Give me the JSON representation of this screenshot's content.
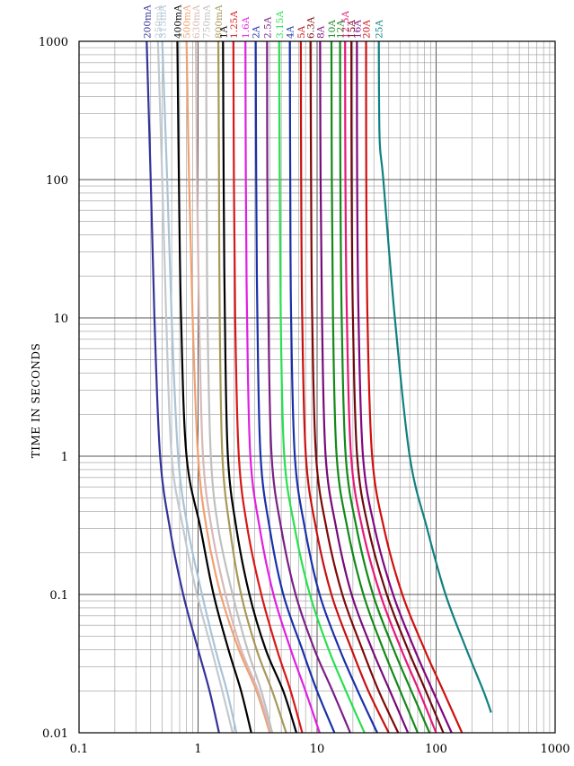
{
  "chart_data": {
    "type": "line",
    "title": "",
    "xlabel": "",
    "ylabel": "TIME IN SECONDS",
    "xscale": "log",
    "yscale": "log",
    "xlim": [
      0.1,
      1000
    ],
    "ylim": [
      0.01,
      1000
    ],
    "x_ticks": [
      "0.1",
      "1",
      "10",
      "100",
      "1000"
    ],
    "y_ticks": [
      "0.01",
      "0.1",
      "1",
      "10",
      "100",
      "1000"
    ],
    "grid": true,
    "legend": "series labels at top of each curve",
    "series": [
      {
        "name": "200mA",
        "color": "#33339a",
        "points": [
          [
            0.37,
            1000
          ],
          [
            0.4,
            100
          ],
          [
            0.43,
            10
          ],
          [
            0.48,
            1
          ],
          [
            0.58,
            0.3
          ],
          [
            0.75,
            0.1
          ],
          [
            1.0,
            0.04
          ],
          [
            1.25,
            0.02
          ],
          [
            1.5,
            0.01
          ]
        ]
      },
      {
        "name": "250mA",
        "color": "#c2c9d0",
        "points": [
          [
            0.46,
            1000
          ],
          [
            0.5,
            100
          ],
          [
            0.54,
            10
          ],
          [
            0.6,
            1
          ],
          [
            0.75,
            0.3
          ],
          [
            0.98,
            0.1
          ],
          [
            1.3,
            0.04
          ],
          [
            1.6,
            0.02
          ],
          [
            1.95,
            0.01
          ]
        ]
      },
      {
        "name": "315mA",
        "color": "#a9c4d6",
        "points": [
          [
            0.5,
            1000
          ],
          [
            0.55,
            100
          ],
          [
            0.6,
            10
          ],
          [
            0.68,
            1
          ],
          [
            0.82,
            0.3
          ],
          [
            1.08,
            0.1
          ],
          [
            1.4,
            0.04
          ],
          [
            1.75,
            0.02
          ],
          [
            2.1,
            0.01
          ]
        ]
      },
      {
        "name": "400mA",
        "color": "#000000",
        "points": [
          [
            0.67,
            1000
          ],
          [
            0.69,
            100
          ],
          [
            0.72,
            10
          ],
          [
            0.8,
            1
          ],
          [
            1.05,
            0.3
          ],
          [
            1.35,
            0.1
          ],
          [
            1.8,
            0.04
          ],
          [
            2.3,
            0.02
          ],
          [
            2.8,
            0.01
          ]
        ]
      },
      {
        "name": "500mA",
        "color": "#f0a070",
        "points": [
          [
            0.8,
            1000
          ],
          [
            0.84,
            100
          ],
          [
            0.9,
            10
          ],
          [
            1.0,
            1
          ],
          [
            1.18,
            0.3
          ],
          [
            1.55,
            0.1
          ],
          [
            2.2,
            0.04
          ],
          [
            3.1,
            0.02
          ],
          [
            4.0,
            0.01
          ]
        ]
      },
      {
        "name": "630mA",
        "color": "#d8b8b8",
        "points": [
          [
            0.96,
            1000
          ],
          [
            0.98,
            100
          ],
          [
            1.02,
            10
          ],
          [
            1.1,
            1
          ],
          [
            1.3,
            0.3
          ],
          [
            1.7,
            0.1
          ],
          [
            2.3,
            0.04
          ],
          [
            3.2,
            0.02
          ],
          [
            4.1,
            0.01
          ]
        ]
      },
      {
        "name": "750mA",
        "color": "#c0c0c0",
        "points": [
          [
            1.17,
            1000
          ],
          [
            1.18,
            100
          ],
          [
            1.2,
            10
          ],
          [
            1.28,
            1
          ],
          [
            1.48,
            0.3
          ],
          [
            1.95,
            0.1
          ],
          [
            2.6,
            0.04
          ],
          [
            3.4,
            0.02
          ],
          [
            4.2,
            0.01
          ]
        ]
      },
      {
        "name": "800mA",
        "color": "#a89858",
        "points": [
          [
            1.48,
            1000
          ],
          [
            1.5,
            100
          ],
          [
            1.52,
            10
          ],
          [
            1.6,
            1
          ],
          [
            1.85,
            0.3
          ],
          [
            2.3,
            0.1
          ],
          [
            3.1,
            0.04
          ],
          [
            4.2,
            0.02
          ],
          [
            5.5,
            0.01
          ]
        ]
      },
      {
        "name": "1A",
        "color": "#000000",
        "points": [
          [
            1.62,
            1000
          ],
          [
            1.64,
            100
          ],
          [
            1.68,
            10
          ],
          [
            1.78,
            1
          ],
          [
            2.1,
            0.3
          ],
          [
            2.7,
            0.1
          ],
          [
            3.7,
            0.04
          ],
          [
            5.2,
            0.02
          ],
          [
            6.7,
            0.01
          ]
        ]
      },
      {
        "name": "1.25A",
        "color": "#d81818",
        "points": [
          [
            1.98,
            1000
          ],
          [
            2.0,
            100
          ],
          [
            2.05,
            10
          ],
          [
            2.2,
            1
          ],
          [
            2.6,
            0.3
          ],
          [
            3.4,
            0.1
          ],
          [
            4.6,
            0.04
          ],
          [
            6.0,
            0.02
          ],
          [
            7.5,
            0.01
          ]
        ]
      },
      {
        "name": "1.6A",
        "color": "#e020e0",
        "points": [
          [
            2.5,
            1000
          ],
          [
            2.52,
            100
          ],
          [
            2.58,
            10
          ],
          [
            2.75,
            1
          ],
          [
            3.3,
            0.3
          ],
          [
            4.3,
            0.1
          ],
          [
            6.0,
            0.04
          ],
          [
            8.0,
            0.02
          ],
          [
            10.5,
            0.01
          ]
        ]
      },
      {
        "name": "2A",
        "color": "#1a30a8",
        "points": [
          [
            3.05,
            1000
          ],
          [
            3.08,
            100
          ],
          [
            3.15,
            10
          ],
          [
            3.35,
            1
          ],
          [
            4.0,
            0.3
          ],
          [
            5.2,
            0.1
          ],
          [
            7.5,
            0.04
          ],
          [
            10.0,
            0.02
          ],
          [
            14.0,
            0.01
          ]
        ]
      },
      {
        "name": "2.5A",
        "color": "#7a1f86",
        "points": [
          [
            3.8,
            1000
          ],
          [
            3.82,
            100
          ],
          [
            3.9,
            10
          ],
          [
            4.15,
            1
          ],
          [
            5.0,
            0.3
          ],
          [
            6.6,
            0.1
          ],
          [
            9.5,
            0.04
          ],
          [
            13.5,
            0.02
          ],
          [
            19.0,
            0.01
          ]
        ]
      },
      {
        "name": "3.15A",
        "color": "#28e050",
        "points": [
          [
            4.8,
            1000
          ],
          [
            4.85,
            100
          ],
          [
            4.95,
            10
          ],
          [
            5.3,
            1
          ],
          [
            6.5,
            0.3
          ],
          [
            8.7,
            0.1
          ],
          [
            12.5,
            0.04
          ],
          [
            17.5,
            0.02
          ],
          [
            25.0,
            0.01
          ]
        ]
      },
      {
        "name": "4A",
        "color": "#1a30a8",
        "points": [
          [
            5.9,
            1000
          ],
          [
            5.95,
            100
          ],
          [
            6.05,
            10
          ],
          [
            6.5,
            1
          ],
          [
            7.9,
            0.3
          ],
          [
            10.5,
            0.1
          ],
          [
            15.5,
            0.04
          ],
          [
            22.0,
            0.02
          ],
          [
            32.0,
            0.01
          ]
        ]
      },
      {
        "name": "5A",
        "color": "#c81010",
        "points": [
          [
            7.3,
            1000
          ],
          [
            7.35,
            100
          ],
          [
            7.5,
            10
          ],
          [
            8.05,
            1
          ],
          [
            9.8,
            0.3
          ],
          [
            13.2,
            0.1
          ],
          [
            19.5,
            0.04
          ],
          [
            27.0,
            0.02
          ],
          [
            40.0,
            0.01
          ]
        ]
      },
      {
        "name": "6.3A",
        "color": "#800808",
        "points": [
          [
            8.8,
            1000
          ],
          [
            8.9,
            100
          ],
          [
            9.1,
            10
          ],
          [
            9.8,
            1
          ],
          [
            12.0,
            0.3
          ],
          [
            16.3,
            0.1
          ],
          [
            24.0,
            0.04
          ],
          [
            33.0,
            0.02
          ],
          [
            48.0,
            0.01
          ]
        ]
      },
      {
        "name": "8A",
        "color": "#780a7a",
        "points": [
          [
            10.6,
            1000
          ],
          [
            10.7,
            100
          ],
          [
            11.0,
            10
          ],
          [
            11.8,
            1
          ],
          [
            14.5,
            0.3
          ],
          [
            19.5,
            0.1
          ],
          [
            29.0,
            0.04
          ],
          [
            41.0,
            0.02
          ],
          [
            58.0,
            0.01
          ]
        ]
      },
      {
        "name": "10A",
        "color": "#128a18",
        "points": [
          [
            13.2,
            1000
          ],
          [
            13.3,
            100
          ],
          [
            13.6,
            10
          ],
          [
            14.6,
            1
          ],
          [
            18.0,
            0.3
          ],
          [
            24.5,
            0.1
          ],
          [
            36.0,
            0.04
          ],
          [
            50.0,
            0.02
          ],
          [
            70.0,
            0.01
          ]
        ]
      },
      {
        "name": "12A",
        "color": "#128a18",
        "points": [
          [
            15.6,
            1000
          ],
          [
            15.7,
            100
          ],
          [
            16.1,
            10
          ],
          [
            17.4,
            1
          ],
          [
            21.5,
            0.3
          ],
          [
            29.5,
            0.1
          ],
          [
            44.0,
            0.04
          ],
          [
            62.0,
            0.02
          ],
          [
            88.0,
            0.01
          ]
        ]
      },
      {
        "name": "12.5A",
        "color": "#e81878",
        "points": [
          [
            17.2,
            1000
          ],
          [
            17.3,
            100
          ],
          [
            17.8,
            10
          ],
          [
            19.3,
            1
          ],
          [
            24.0,
            0.3
          ],
          [
            34.0,
            0.1
          ],
          [
            51.0,
            0.04
          ],
          [
            72.0,
            0.02
          ],
          [
            100.0,
            0.01
          ]
        ]
      },
      {
        "name": "15A",
        "color": "#700810",
        "points": [
          [
            19.4,
            1000
          ],
          [
            19.5,
            100
          ],
          [
            20.0,
            10
          ],
          [
            21.7,
            1
          ],
          [
            27.0,
            0.3
          ],
          [
            38.5,
            0.1
          ],
          [
            58.0,
            0.04
          ],
          [
            82.0,
            0.02
          ],
          [
            115.0,
            0.01
          ]
        ]
      },
      {
        "name": "16A",
        "color": "#800880",
        "points": [
          [
            21.6,
            1000
          ],
          [
            21.7,
            100
          ],
          [
            22.3,
            10
          ],
          [
            24.3,
            1
          ],
          [
            30.5,
            0.3
          ],
          [
            43.5,
            0.1
          ],
          [
            66.0,
            0.04
          ],
          [
            94.0,
            0.02
          ],
          [
            135.0,
            0.01
          ]
        ]
      },
      {
        "name": "20A",
        "color": "#d01010",
        "points": [
          [
            25.8,
            1000
          ],
          [
            25.9,
            100
          ],
          [
            26.5,
            10
          ],
          [
            29.0,
            1
          ],
          [
            36.5,
            0.3
          ],
          [
            52.0,
            0.1
          ],
          [
            80.0,
            0.04
          ],
          [
            115.0,
            0.02
          ],
          [
            165.0,
            0.01
          ]
        ]
      },
      {
        "name": "25A",
        "color": "#118080",
        "points": [
          [
            33.0,
            1000
          ],
          [
            33.5,
            200
          ],
          [
            36.0,
            100
          ],
          [
            45.0,
            10
          ],
          [
            60.0,
            1
          ],
          [
            84.0,
            0.3
          ],
          [
            120.0,
            0.1
          ],
          [
            180.0,
            0.04
          ],
          [
            250.0,
            0.02
          ],
          [
            290.0,
            0.014
          ]
        ]
      }
    ]
  }
}
